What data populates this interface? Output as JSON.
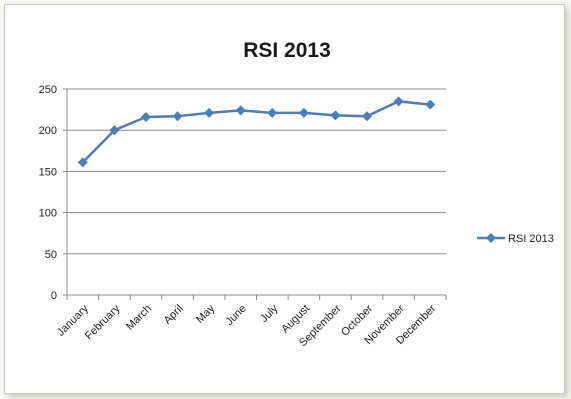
{
  "chart_data": {
    "type": "line",
    "title": "RSI 2013",
    "xlabel": "",
    "ylabel": "",
    "categories": [
      "January",
      "February",
      "March",
      "April",
      "May",
      "June",
      "July",
      "August",
      "September",
      "October",
      "November",
      "December"
    ],
    "series": [
      {
        "name": "RSI 2013",
        "values": [
          161,
          200,
          216,
          217,
          221,
          224,
          221,
          221,
          218,
          217,
          235,
          231
        ]
      }
    ],
    "ylim": [
      0,
      250
    ],
    "yticks": [
      0,
      50,
      100,
      150,
      200,
      250
    ],
    "grid": true,
    "legend": "right",
    "colors": {
      "series": "#4a7ebb",
      "grid": "#8c8c8c",
      "axis": "#8c8c8c"
    }
  }
}
